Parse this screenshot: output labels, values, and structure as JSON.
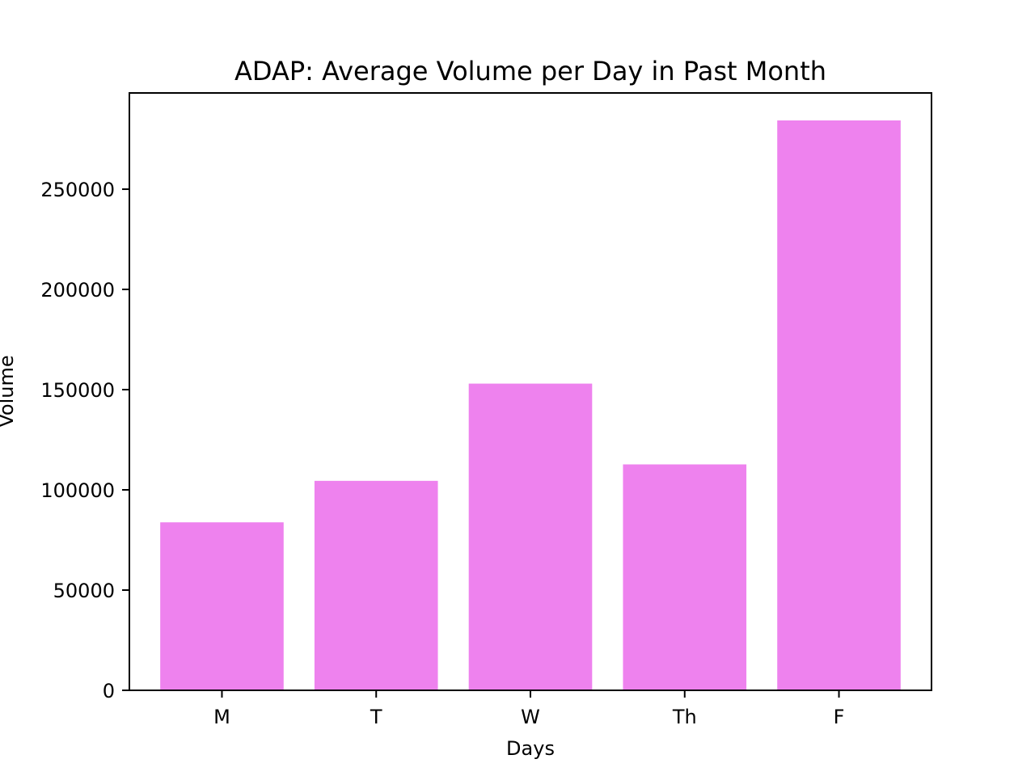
{
  "chart_data": {
    "type": "bar",
    "title": "ADAP: Average Volume per Day in Past Month",
    "xlabel": "Days",
    "ylabel": "Volume",
    "categories": [
      "M",
      "T",
      "W",
      "Th",
      "F"
    ],
    "values": [
      83800,
      104500,
      153000,
      112700,
      284300
    ],
    "ylim": [
      0,
      298000
    ],
    "yticks": [
      0,
      50000,
      100000,
      150000,
      200000,
      250000
    ],
    "bar_color": "#ee82ee",
    "grid": false,
    "legend": "none"
  }
}
